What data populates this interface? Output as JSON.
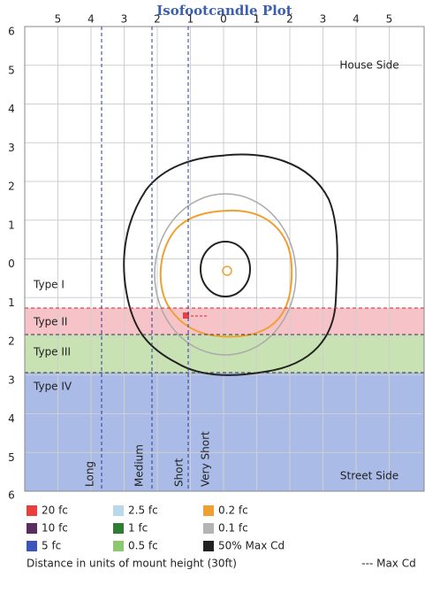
{
  "chart_data": {
    "type": "contour",
    "title": "Isofootcandle Plot",
    "xlim": [
      -6,
      6
    ],
    "xticks": [
      {
        "value": -5,
        "label": "5"
      },
      {
        "value": -4,
        "label": "4"
      },
      {
        "value": -3,
        "label": "3"
      },
      {
        "value": -2,
        "label": "2"
      },
      {
        "value": -1,
        "label": "1"
      },
      0,
      1,
      2,
      3,
      4,
      5
    ],
    "ylim": [
      -6,
      6
    ],
    "yticks": [
      6,
      5,
      4,
      3,
      2,
      1,
      0,
      {
        "value": -1,
        "label": "1"
      },
      {
        "value": -2,
        "label": "2"
      },
      {
        "value": -3,
        "label": "3"
      },
      {
        "value": -4,
        "label": "4"
      },
      {
        "value": -5,
        "label": "5"
      },
      {
        "value": -6,
        "label": "6"
      }
    ],
    "grid": true,
    "corner_labels": {
      "top": "House Side",
      "bottom": "Street Side"
    },
    "zones": [
      "Type I",
      "Type II",
      "Type III",
      "Type IV"
    ],
    "distance_lines": [
      "Long",
      "Medium",
      "Short",
      "Very Short"
    ],
    "legend": [
      {
        "label": "20 fc",
        "color": "#e8403c"
      },
      {
        "label": "2.5 fc",
        "color": "#b9d8ea"
      },
      {
        "label": "0.2 fc",
        "color": "#f0a030"
      },
      {
        "label": "10 fc",
        "color": "#5b2d5e"
      },
      {
        "label": "1 fc",
        "color": "#2e7d32"
      },
      {
        "label": "0.1 fc",
        "color": "#b4b4b4"
      },
      {
        "label": "5 fc",
        "color": "#3b55b8"
      },
      {
        "label": "0.5 fc",
        "color": "#8cc870"
      },
      {
        "label": "50% Max Cd",
        "color": "#222222"
      }
    ],
    "footer": "Distance in units of mount height (30ft)",
    "max_cd_label": "--- Max Cd"
  }
}
